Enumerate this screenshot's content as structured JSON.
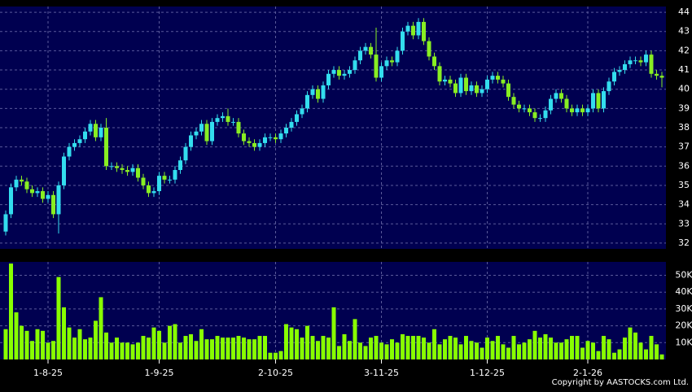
{
  "chart_data": [
    {
      "type": "candlestick",
      "up_color": "#33ddee",
      "down_color": "#88ee22",
      "grid": true,
      "ylim": [
        31.7,
        44.3
      ],
      "yticks": [
        32,
        33,
        34,
        35,
        36,
        37,
        38,
        39,
        40,
        41,
        42,
        43,
        44
      ],
      "categories": [
        null,
        null,
        null,
        null,
        null,
        null,
        null,
        null,
        "1-8-25",
        null,
        null,
        null,
        null,
        null,
        null,
        null,
        null,
        null,
        null,
        null,
        null,
        null,
        null,
        null,
        null,
        null,
        null,
        null,
        null,
        "1-9-25",
        null,
        null,
        null,
        null,
        null,
        null,
        null,
        null,
        null,
        null,
        null,
        null,
        null,
        null,
        null,
        null,
        null,
        null,
        null,
        null,
        null,
        "2-10-25",
        null,
        null,
        null,
        null,
        null,
        null,
        null,
        null,
        null,
        null,
        null,
        null,
        null,
        null,
        null,
        null,
        null,
        null,
        null,
        "3-11-25",
        null,
        null,
        null,
        null,
        null,
        null,
        null,
        null,
        null,
        null,
        null,
        null,
        null,
        null,
        null,
        null,
        null,
        null,
        null,
        "1-12-25",
        null,
        null,
        null,
        null,
        null,
        null,
        null,
        null,
        null,
        null,
        null,
        null,
        null,
        null,
        null,
        null,
        null,
        null,
        "2-1-26",
        null,
        null,
        null,
        null,
        null,
        null,
        null,
        null,
        null,
        null,
        null,
        null,
        null,
        null
      ],
      "open": [
        32.6,
        33.5,
        34.9,
        35.3,
        35.2,
        34.8,
        34.6,
        34.7,
        34.3,
        34.5,
        33.5,
        35.0,
        36.5,
        37.0,
        37.2,
        37.4,
        37.8,
        38.2,
        37.5,
        38.0,
        36.0,
        36.0,
        35.9,
        35.8,
        35.7,
        35.9,
        35.4,
        35.0,
        34.6,
        34.7,
        35.5,
        35.3,
        35.3,
        35.8,
        36.3,
        37.0,
        37.6,
        37.8,
        38.2,
        37.3,
        38.3,
        38.5,
        38.6,
        38.3,
        38.3,
        37.7,
        37.3,
        37.2,
        37.0,
        37.2,
        37.5,
        37.5,
        37.4,
        37.7,
        38.0,
        38.3,
        38.7,
        39.0,
        39.7,
        40.0,
        39.5,
        40.2,
        40.8,
        41.0,
        40.7,
        40.8,
        41.0,
        41.5,
        42.0,
        42.2,
        41.8,
        40.6,
        41.2,
        41.5,
        41.4,
        42.0,
        43.0,
        43.3,
        42.8,
        43.5,
        42.5,
        41.7,
        41.2,
        40.4,
        40.5,
        40.3,
        39.8,
        40.6,
        39.9,
        40.2,
        39.8,
        40.0,
        40.5,
        40.7,
        40.5,
        40.3,
        39.6,
        39.2,
        39.0,
        39.0,
        38.8,
        38.5,
        38.5,
        38.9,
        39.5,
        39.8,
        39.5,
        39.0,
        38.8,
        39.0,
        38.8,
        39.0,
        39.8,
        39.0,
        39.9,
        40.4,
        40.9,
        41.0,
        41.3,
        41.5,
        41.5,
        41.4,
        41.8,
        40.8,
        40.7
      ],
      "high": [
        33.7,
        35.1,
        35.5,
        35.5,
        35.4,
        35.0,
        34.9,
        34.9,
        34.7,
        34.7,
        35.2,
        36.7,
        37.2,
        37.4,
        37.6,
        38.0,
        38.4,
        38.4,
        38.2,
        38.5,
        36.2,
        36.2,
        36.1,
        36.0,
        36.1,
        36.1,
        35.6,
        35.2,
        34.9,
        35.7,
        35.7,
        35.5,
        36.0,
        36.5,
        37.2,
        37.8,
        38.0,
        38.4,
        38.4,
        38.5,
        38.7,
        38.8,
        39.0,
        38.5,
        38.5,
        37.9,
        37.5,
        37.4,
        37.4,
        37.7,
        37.7,
        37.7,
        37.9,
        38.2,
        38.5,
        38.9,
        39.2,
        39.9,
        40.2,
        40.2,
        40.4,
        41.0,
        41.2,
        41.2,
        41.0,
        41.2,
        41.7,
        42.2,
        42.4,
        42.4,
        43.2,
        41.4,
        41.7,
        41.7,
        42.2,
        43.2,
        43.5,
        43.5,
        43.7,
        43.7,
        42.7,
        41.9,
        41.4,
        40.7,
        40.7,
        40.5,
        40.8,
        40.8,
        40.4,
        40.4,
        40.2,
        40.7,
        40.9,
        40.9,
        40.7,
        40.5,
        39.8,
        39.4,
        39.2,
        39.2,
        39.0,
        38.7,
        39.1,
        39.7,
        40.0,
        40.0,
        39.7,
        39.2,
        39.2,
        39.2,
        39.2,
        40.0,
        40.0,
        40.1,
        40.6,
        41.1,
        41.2,
        41.5,
        41.7,
        41.7,
        41.7,
        42.0,
        42.0,
        41.0,
        40.9
      ],
      "low": [
        32.4,
        33.3,
        34.7,
        35.0,
        34.6,
        34.4,
        34.4,
        34.1,
        34.1,
        33.3,
        32.5,
        34.8,
        36.3,
        36.8,
        37.0,
        37.2,
        37.6,
        37.3,
        37.3,
        35.8,
        35.8,
        35.7,
        35.6,
        35.5,
        35.5,
        35.2,
        34.8,
        34.4,
        34.4,
        34.5,
        35.1,
        35.1,
        35.1,
        35.6,
        36.1,
        36.8,
        37.4,
        37.6,
        37.1,
        37.1,
        38.1,
        38.3,
        38.1,
        38.1,
        37.5,
        37.1,
        37.0,
        36.8,
        36.8,
        37.0,
        37.3,
        37.2,
        37.2,
        37.5,
        37.8,
        38.1,
        38.5,
        38.8,
        39.5,
        39.3,
        39.3,
        40.0,
        40.6,
        40.5,
        40.5,
        40.6,
        40.8,
        41.3,
        41.8,
        41.6,
        40.4,
        40.4,
        41.0,
        41.2,
        41.2,
        41.8,
        42.8,
        42.6,
        42.6,
        42.3,
        41.5,
        41.0,
        40.2,
        40.2,
        40.1,
        39.6,
        39.6,
        39.7,
        39.7,
        39.6,
        39.6,
        39.8,
        40.3,
        40.3,
        40.1,
        39.4,
        39.0,
        38.8,
        38.8,
        38.6,
        38.3,
        38.3,
        38.3,
        38.7,
        39.3,
        39.3,
        38.8,
        38.6,
        38.6,
        38.6,
        38.6,
        38.8,
        38.8,
        38.8,
        39.7,
        40.2,
        40.7,
        40.8,
        41.1,
        41.3,
        41.2,
        41.2,
        40.6,
        40.5,
        40.1
      ],
      "close": [
        33.5,
        34.9,
        35.3,
        35.2,
        34.8,
        34.6,
        34.7,
        34.3,
        34.5,
        33.5,
        35.0,
        36.5,
        37.0,
        37.2,
        37.4,
        37.8,
        38.2,
        37.5,
        38.0,
        36.0,
        36.0,
        35.9,
        35.8,
        35.7,
        35.9,
        35.4,
        35.0,
        34.6,
        34.7,
        35.5,
        35.3,
        35.3,
        35.8,
        36.3,
        37.0,
        37.6,
        37.8,
        38.2,
        37.3,
        38.3,
        38.5,
        38.6,
        38.3,
        38.3,
        37.7,
        37.3,
        37.2,
        37.0,
        37.2,
        37.5,
        37.5,
        37.4,
        37.7,
        38.0,
        38.3,
        38.7,
        39.0,
        39.7,
        40.0,
        39.5,
        40.2,
        40.8,
        41.0,
        40.7,
        40.8,
        41.0,
        41.5,
        42.0,
        42.2,
        41.8,
        40.6,
        41.2,
        41.5,
        41.4,
        42.0,
        43.0,
        43.3,
        42.8,
        43.5,
        42.5,
        41.7,
        41.2,
        40.4,
        40.5,
        40.3,
        39.8,
        40.6,
        39.9,
        40.2,
        39.8,
        40.0,
        40.5,
        40.7,
        40.5,
        40.3,
        39.6,
        39.2,
        39.0,
        39.0,
        38.8,
        38.5,
        38.5,
        38.9,
        39.5,
        39.8,
        39.5,
        39.0,
        38.8,
        39.0,
        38.8,
        39.0,
        39.8,
        39.0,
        39.9,
        40.4,
        40.9,
        41.0,
        41.3,
        41.5,
        41.5,
        41.4,
        41.8,
        40.8,
        40.7,
        40.6
      ]
    },
    {
      "type": "bar",
      "color": "#88ff00",
      "ylim": [
        0,
        58
      ],
      "yticks": [
        {
          "value": 10,
          "label": "10K"
        },
        {
          "value": 20,
          "label": "20K"
        },
        {
          "value": 30,
          "label": "30K"
        },
        {
          "value": 40,
          "label": "40K"
        },
        {
          "value": 50,
          "label": "50K"
        }
      ],
      "values": [
        18,
        57,
        28,
        20,
        17,
        11,
        18,
        17,
        10,
        11,
        49,
        31,
        19,
        13,
        18,
        12,
        13,
        23,
        37,
        16,
        10,
        13,
        10,
        10,
        9,
        10,
        14,
        13,
        19,
        17,
        10,
        20,
        21,
        10,
        14,
        15,
        11,
        18,
        12,
        12,
        14,
        13,
        13,
        13,
        14,
        13,
        12,
        12,
        14,
        14,
        4,
        4,
        5,
        21,
        19,
        18,
        13,
        20,
        14,
        11,
        14,
        13,
        31,
        8,
        15,
        11,
        24,
        10,
        8,
        13,
        14,
        10,
        9,
        12,
        10,
        15,
        14,
        14,
        14,
        13,
        10,
        18,
        9,
        12,
        14,
        13,
        9,
        14,
        11,
        10,
        7,
        13,
        11,
        14,
        9,
        7,
        14,
        9,
        10,
        12,
        17,
        13,
        15,
        13,
        10,
        10,
        12,
        14,
        14,
        7,
        11,
        10,
        5,
        14,
        12,
        4,
        6,
        13,
        19,
        16,
        10,
        6,
        14,
        9,
        3
      ]
    }
  ],
  "copyright": "Copyright by AASTOCKS.com Ltd."
}
